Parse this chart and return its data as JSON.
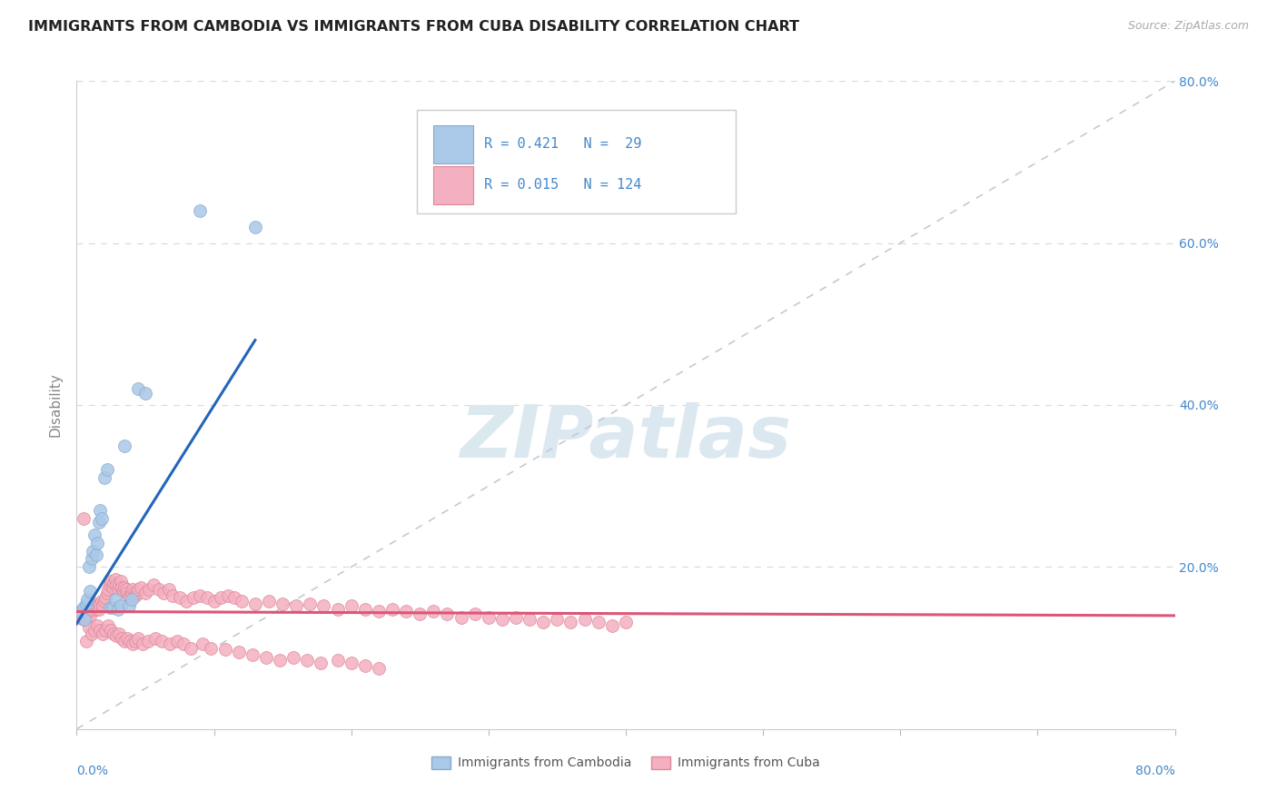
{
  "title": "IMMIGRANTS FROM CAMBODIA VS IMMIGRANTS FROM CUBA DISABILITY CORRELATION CHART",
  "source": "Source: ZipAtlas.com",
  "ylabel": "Disability",
  "xlim": [
    0.0,
    0.8
  ],
  "ylim": [
    0.0,
    0.8
  ],
  "yticks": [
    0.0,
    0.2,
    0.4,
    0.6,
    0.8
  ],
  "ytick_labels_right": [
    "",
    "20.0%",
    "40.0%",
    "60.0%",
    "80.0%"
  ],
  "xtick_labels_bottom": [
    "0.0%",
    "",
    "",
    "",
    "",
    "",
    "",
    "",
    "80.0%"
  ],
  "cambodia_color": "#aac8e8",
  "cambodia_edge": "#88aacc",
  "cambodia_line_color": "#2266bb",
  "cuba_color": "#f4b0c0",
  "cuba_edge": "#dd8899",
  "cuba_line_color": "#dd5577",
  "ref_line_color": "#c0ccd8",
  "legend_color": "#4488cc",
  "watermark_color": "#dce8f0",
  "cambodia_x": [
    0.003,
    0.005,
    0.006,
    0.007,
    0.008,
    0.009,
    0.01,
    0.011,
    0.012,
    0.013,
    0.014,
    0.015,
    0.016,
    0.017,
    0.018,
    0.02,
    0.022,
    0.024,
    0.026,
    0.028,
    0.03,
    0.032,
    0.035,
    0.038,
    0.04,
    0.045,
    0.05,
    0.09,
    0.13
  ],
  "cambodia_y": [
    0.145,
    0.15,
    0.135,
    0.155,
    0.16,
    0.2,
    0.17,
    0.21,
    0.22,
    0.24,
    0.215,
    0.23,
    0.255,
    0.27,
    0.26,
    0.31,
    0.32,
    0.15,
    0.15,
    0.16,
    0.148,
    0.152,
    0.35,
    0.152,
    0.16,
    0.42,
    0.415,
    0.64,
    0.62
  ],
  "cuba_x": [
    0.001,
    0.002,
    0.003,
    0.004,
    0.005,
    0.006,
    0.007,
    0.008,
    0.009,
    0.01,
    0.011,
    0.012,
    0.013,
    0.014,
    0.015,
    0.016,
    0.017,
    0.018,
    0.019,
    0.02,
    0.021,
    0.022,
    0.023,
    0.024,
    0.025,
    0.026,
    0.027,
    0.028,
    0.029,
    0.03,
    0.031,
    0.032,
    0.033,
    0.034,
    0.035,
    0.036,
    0.037,
    0.038,
    0.039,
    0.04,
    0.041,
    0.042,
    0.043,
    0.044,
    0.045,
    0.047,
    0.05,
    0.053,
    0.056,
    0.06,
    0.063,
    0.067,
    0.07,
    0.075,
    0.08,
    0.085,
    0.09,
    0.095,
    0.1,
    0.105,
    0.11,
    0.115,
    0.12,
    0.13,
    0.14,
    0.15,
    0.16,
    0.17,
    0.18,
    0.19,
    0.2,
    0.21,
    0.22,
    0.23,
    0.24,
    0.25,
    0.26,
    0.27,
    0.28,
    0.29,
    0.3,
    0.31,
    0.32,
    0.33,
    0.34,
    0.35,
    0.36,
    0.37,
    0.38,
    0.39,
    0.4,
    0.005,
    0.007,
    0.009,
    0.011,
    0.013,
    0.015,
    0.017,
    0.019,
    0.021,
    0.023,
    0.025,
    0.027,
    0.029,
    0.031,
    0.033,
    0.035,
    0.037,
    0.039,
    0.041,
    0.043,
    0.045,
    0.048,
    0.052,
    0.057,
    0.062,
    0.068,
    0.073,
    0.078,
    0.083,
    0.092,
    0.098,
    0.108,
    0.118,
    0.128,
    0.138,
    0.148,
    0.158,
    0.168,
    0.178,
    0.19,
    0.2,
    0.21,
    0.22
  ],
  "cuba_y": [
    0.142,
    0.138,
    0.145,
    0.14,
    0.135,
    0.148,
    0.143,
    0.138,
    0.145,
    0.14,
    0.148,
    0.152,
    0.155,
    0.148,
    0.152,
    0.148,
    0.155,
    0.158,
    0.152,
    0.158,
    0.162,
    0.168,
    0.172,
    0.178,
    0.182,
    0.175,
    0.18,
    0.185,
    0.178,
    0.172,
    0.178,
    0.182,
    0.175,
    0.17,
    0.175,
    0.172,
    0.168,
    0.165,
    0.162,
    0.168,
    0.172,
    0.168,
    0.165,
    0.168,
    0.172,
    0.175,
    0.168,
    0.172,
    0.178,
    0.172,
    0.168,
    0.172,
    0.165,
    0.162,
    0.158,
    0.162,
    0.165,
    0.162,
    0.158,
    0.162,
    0.165,
    0.162,
    0.158,
    0.155,
    0.158,
    0.155,
    0.152,
    0.155,
    0.152,
    0.148,
    0.152,
    0.148,
    0.145,
    0.148,
    0.145,
    0.142,
    0.145,
    0.142,
    0.138,
    0.142,
    0.138,
    0.135,
    0.138,
    0.135,
    0.132,
    0.135,
    0.132,
    0.135,
    0.132,
    0.128,
    0.132,
    0.26,
    0.108,
    0.125,
    0.118,
    0.122,
    0.128,
    0.122,
    0.118,
    0.122,
    0.128,
    0.122,
    0.118,
    0.115,
    0.118,
    0.112,
    0.108,
    0.112,
    0.108,
    0.105,
    0.108,
    0.112,
    0.105,
    0.108,
    0.112,
    0.108,
    0.105,
    0.108,
    0.105,
    0.1,
    0.105,
    0.1,
    0.098,
    0.095,
    0.092,
    0.088,
    0.085,
    0.088,
    0.085,
    0.082,
    0.085,
    0.082,
    0.078,
    0.075
  ],
  "cambodia_line_x": [
    0.0,
    0.13
  ],
  "cambodia_line_y": [
    0.13,
    0.48
  ],
  "cuba_line_x": [
    0.0,
    0.8
  ],
  "cuba_line_y": [
    0.145,
    0.14
  ]
}
